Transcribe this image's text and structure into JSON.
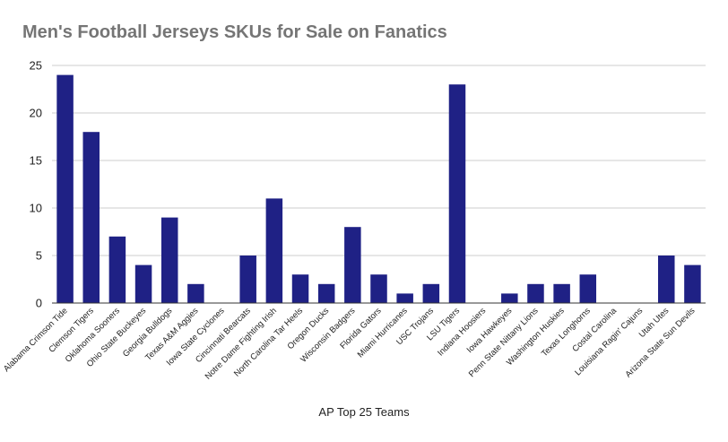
{
  "chart_data": {
    "type": "bar",
    "title": "Men's Football Jerseys SKUs for Sale on Fanatics",
    "xlabel": "AP Top 25 Teams",
    "ylabel": "",
    "ylim": [
      0,
      25
    ],
    "yticks": [
      0,
      5,
      10,
      15,
      20,
      25
    ],
    "grid": true,
    "bar_color": "#1f2185",
    "categories": [
      "Alabama Crimson Tide",
      "Clemson Tigers",
      "Oklahoma Sooners",
      "Ohio State Buckeyes",
      "Georgia Bulldogs",
      "Texas A&M Aggies",
      "Iowa State Cyclones",
      "Cincinnati Bearcats",
      "Notre Dame Fighting Irish",
      "North Carolina Tar Heels",
      "Oregon Ducks",
      "Wisconsin Badgers",
      "Florida Gators",
      "Miami Hurricanes",
      "USC Trojans",
      "LSU Tigers",
      "Indiana Hoosiers",
      "Iowa Hawkeyes",
      "Penn State Nittany Lions",
      "Washington Huskies",
      "Texas Longhorns",
      "Costal Carolina",
      "Louisiana Ragin' Cajuns",
      "Utah Utes",
      "Arizona State Sun Devils"
    ],
    "values": [
      24,
      18,
      7,
      4,
      9,
      2,
      0,
      5,
      11,
      3,
      2,
      8,
      3,
      1,
      2,
      23,
      0,
      1,
      2,
      2,
      3,
      0,
      0,
      5,
      4
    ]
  }
}
